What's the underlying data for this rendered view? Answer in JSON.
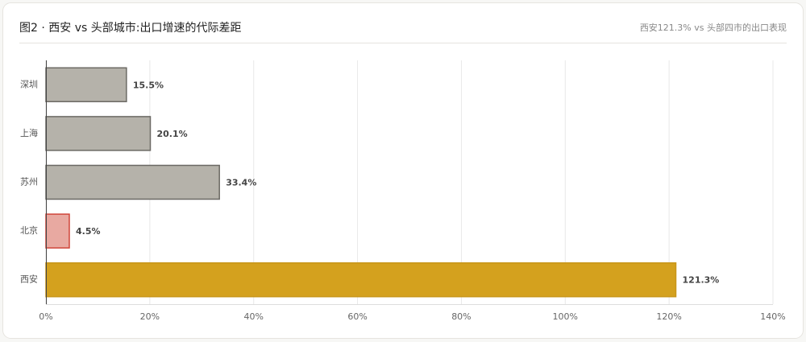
{
  "chart_data": {
    "type": "bar",
    "orientation": "horizontal",
    "title": "图2 · 西安 vs 头部城市:出口增速的代际差距",
    "subtitle": "西安121.3% vs 头部四市的出口表现",
    "categories": [
      "深圳",
      "上海",
      "苏州",
      "北京",
      "西安"
    ],
    "values": [
      15.5,
      20.1,
      33.4,
      4.5,
      121.3
    ],
    "value_labels": [
      "15.5%",
      "20.1%",
      "33.4%",
      "4.5%",
      "121.3%"
    ],
    "colors": [
      "#b5b2aa",
      "#b5b2aa",
      "#b5b2aa",
      "#e8a9a1",
      "#d4a11e"
    ],
    "edge_colors": [
      "#6b6964",
      "#6b6964",
      "#6b6964",
      "#d0453a",
      "#c8961a"
    ],
    "xlim": [
      0,
      140
    ],
    "xticks": [
      {
        "value": 0,
        "label": "0%"
      },
      {
        "value": 20,
        "label": "20%"
      },
      {
        "value": 40,
        "label": "40%"
      },
      {
        "value": 60,
        "label": "60%"
      },
      {
        "value": 80,
        "label": "80%"
      },
      {
        "value": 100,
        "label": "100%"
      },
      {
        "value": 120,
        "label": "120%"
      },
      {
        "value": 140,
        "label": "140%"
      }
    ],
    "grid": true
  }
}
